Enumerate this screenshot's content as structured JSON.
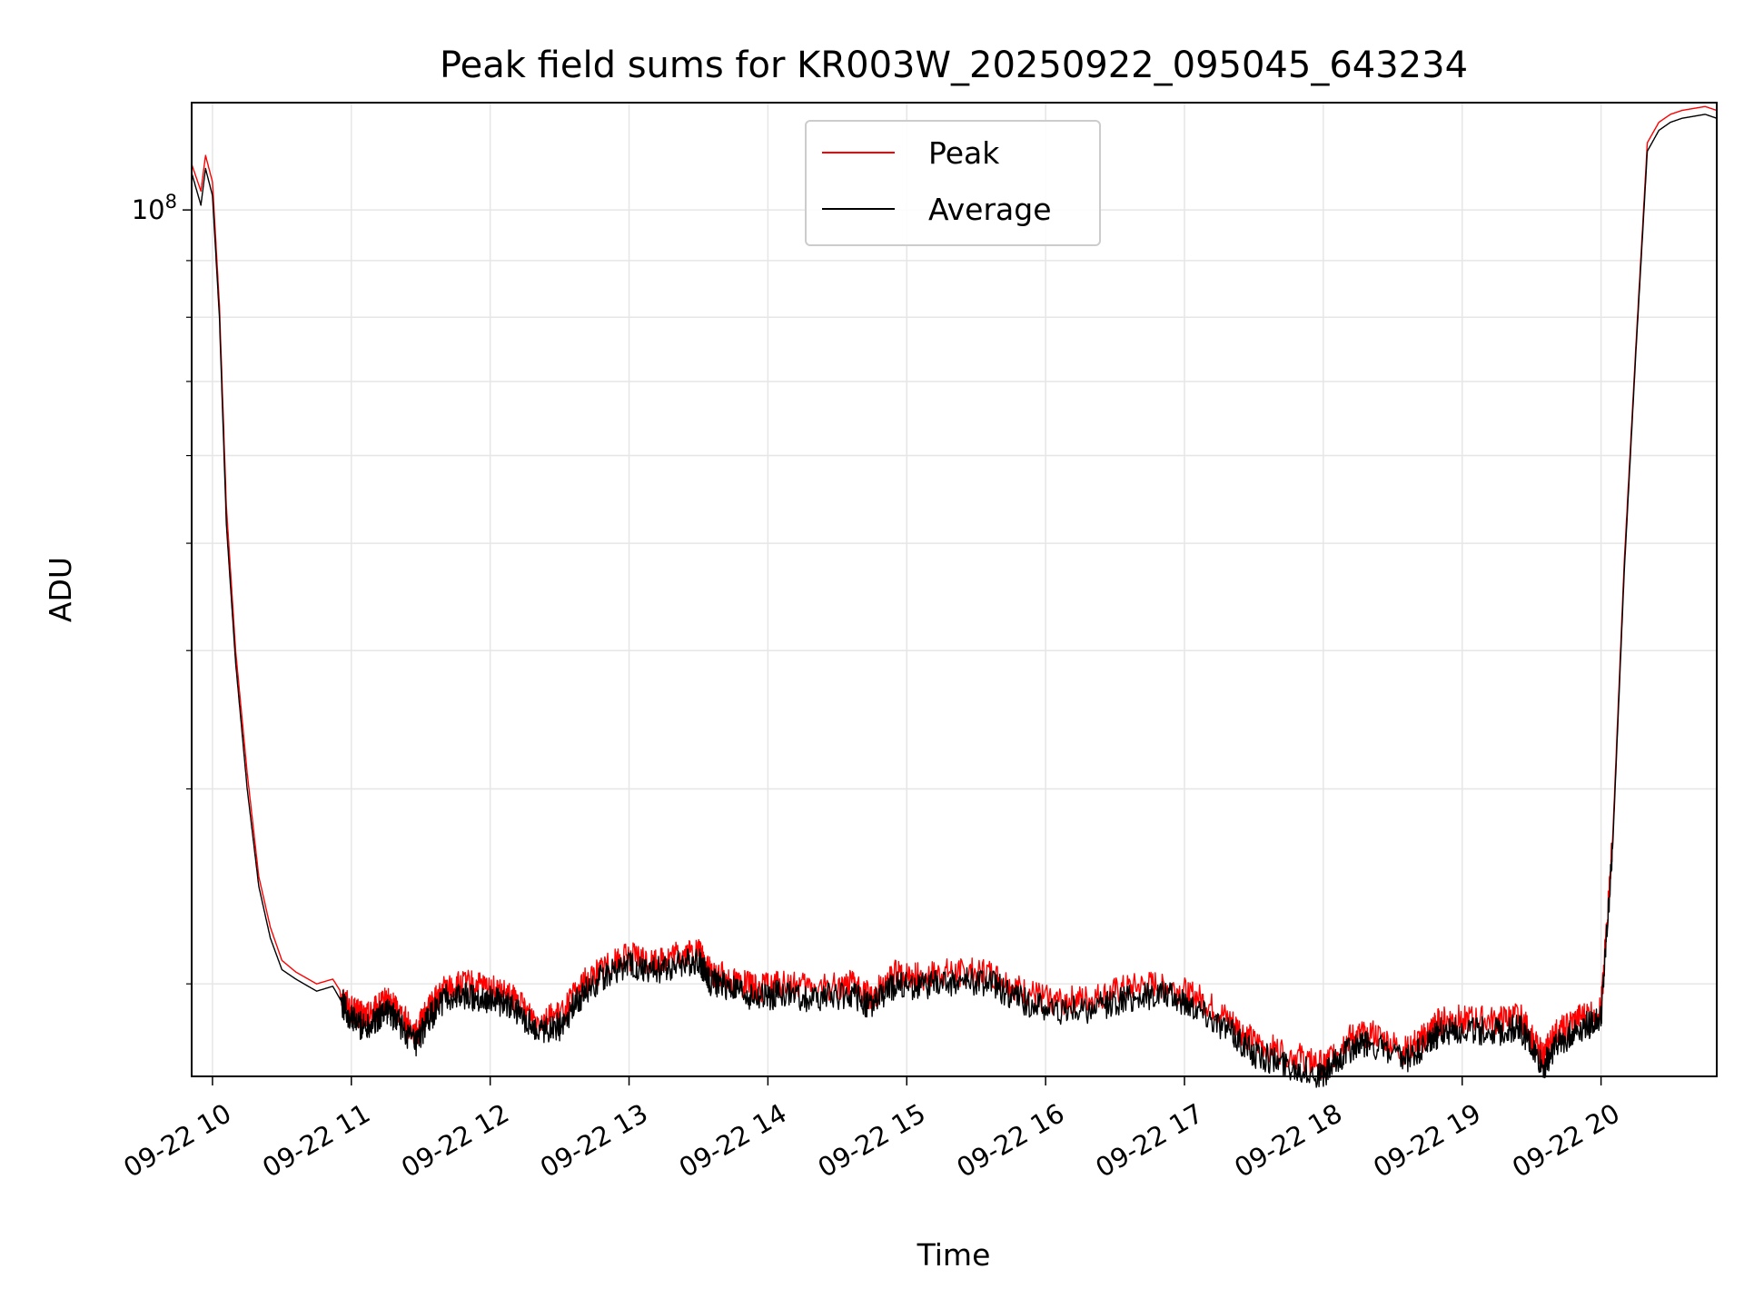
{
  "chart_data": {
    "type": "line",
    "title": "Peak field sums for KR003W_20250922_095045_643234",
    "xlabel": "Time",
    "ylabel": "ADU",
    "yscale": "log",
    "ylim": [
      16500000,
      125000000
    ],
    "xlim": [
      "2025-09-22 09:51",
      "2025-09-22 20:50"
    ],
    "grid": true,
    "legend_position": "top-center",
    "x_ticks": [
      "09-22 10",
      "09-22 11",
      "09-22 12",
      "09-22 13",
      "09-22 14",
      "09-22 15",
      "09-22 16",
      "09-22 17",
      "09-22 18",
      "09-22 19",
      "09-22 20"
    ],
    "y_ticks": [
      {
        "value": 100000000,
        "base": "10",
        "exp": "8"
      }
    ],
    "y_minor_ticks": [
      20000000,
      30000000,
      40000000,
      50000000,
      60000000,
      70000000,
      80000000,
      90000000
    ],
    "x_times": [
      "2025-09-22 09:51",
      "2025-09-22 09:55",
      "2025-09-22 09:57",
      "2025-09-22 10:00",
      "2025-09-22 10:03",
      "2025-09-22 10:06",
      "2025-09-22 10:10",
      "2025-09-22 10:15",
      "2025-09-22 10:20",
      "2025-09-22 10:25",
      "2025-09-22 10:30",
      "2025-09-22 10:36",
      "2025-09-22 10:45",
      "2025-09-22 10:52",
      "2025-09-22 11:00",
      "2025-09-22 11:05",
      "2025-09-22 11:10",
      "2025-09-22 11:15",
      "2025-09-22 11:20",
      "2025-09-22 11:28",
      "2025-09-22 11:32",
      "2025-09-22 11:40",
      "2025-09-22 11:50",
      "2025-09-22 12:00",
      "2025-09-22 12:10",
      "2025-09-22 12:20",
      "2025-09-22 12:30",
      "2025-09-22 12:40",
      "2025-09-22 12:50",
      "2025-09-22 13:00",
      "2025-09-22 13:10",
      "2025-09-22 13:20",
      "2025-09-22 13:30",
      "2025-09-22 13:35",
      "2025-09-22 13:45",
      "2025-09-22 13:55",
      "2025-09-22 14:05",
      "2025-09-22 14:20",
      "2025-09-22 14:35",
      "2025-09-22 14:45",
      "2025-09-22 14:55",
      "2025-09-22 15:05",
      "2025-09-22 15:20",
      "2025-09-22 15:35",
      "2025-09-22 15:50",
      "2025-09-22 16:05",
      "2025-09-22 16:20",
      "2025-09-22 16:35",
      "2025-09-22 16:50",
      "2025-09-22 17:05",
      "2025-09-22 17:20",
      "2025-09-22 17:30",
      "2025-09-22 17:45",
      "2025-09-22 18:00",
      "2025-09-22 18:10",
      "2025-09-22 18:20",
      "2025-09-22 18:35",
      "2025-09-22 18:45",
      "2025-09-22 18:50",
      "2025-09-22 19:00",
      "2025-09-22 19:15",
      "2025-09-22 19:25",
      "2025-09-22 19:35",
      "2025-09-22 19:40",
      "2025-09-22 19:50",
      "2025-09-22 20:00",
      "2025-09-22 20:05",
      "2025-09-22 20:10",
      "2025-09-22 20:15",
      "2025-09-22 20:20",
      "2025-09-22 20:25",
      "2025-09-22 20:30",
      "2025-09-22 20:35",
      "2025-09-22 20:40",
      "2025-09-22 20:45",
      "2025-09-22 20:50"
    ],
    "series": [
      {
        "name": "Peak",
        "color": "#ff0000",
        "values": [
          110000000,
          104000000,
          112000000,
          106000000,
          82000000,
          54000000,
          40000000,
          31000000,
          25000000,
          22500000,
          21000000,
          20500000,
          20000000,
          20200000,
          19000000,
          18700000,
          18900000,
          19300000,
          19000000,
          18000000,
          18800000,
          19800000,
          20000000,
          19800000,
          19400000,
          18600000,
          18700000,
          20000000,
          20800000,
          21200000,
          20900000,
          21200000,
          21400000,
          20500000,
          20200000,
          19800000,
          20000000,
          19800000,
          20000000,
          19500000,
          20400000,
          20300000,
          20500000,
          20500000,
          19700000,
          19300000,
          19400000,
          19800000,
          20000000,
          19500000,
          18500000,
          17700000,
          17300000,
          16900000,
          17800000,
          18100000,
          17400000,
          18000000,
          18500000,
          18600000,
          18500000,
          18700000,
          17200000,
          18000000,
          18600000,
          19000000,
          27000000,
          48000000,
          75000000,
          115000000,
          120000000,
          122000000,
          123000000,
          123500000,
          124000000,
          123000000
        ]
      },
      {
        "name": "Average",
        "color": "#000000",
        "values": [
          108000000,
          101000000,
          109000000,
          103000000,
          80000000,
          52000000,
          39000000,
          30000000,
          24500000,
          22000000,
          20600000,
          20200000,
          19700000,
          19900000,
          18600000,
          18300000,
          18500000,
          19000000,
          18500000,
          17600000,
          18400000,
          19400000,
          19500000,
          19400000,
          19000000,
          18200000,
          18300000,
          19600000,
          20400000,
          20800000,
          20500000,
          20800000,
          21000000,
          20100000,
          19800000,
          19400000,
          19600000,
          19400000,
          19600000,
          19100000,
          20000000,
          19900000,
          20100000,
          20100000,
          19300000,
          18900000,
          19000000,
          19400000,
          19600000,
          19100000,
          18100000,
          17300000,
          16900000,
          16500000,
          17400000,
          17700000,
          17000000,
          17600000,
          18100000,
          18200000,
          18100000,
          18300000,
          16800000,
          17600000,
          18200000,
          18600000,
          26500000,
          47000000,
          74000000,
          113000000,
          118000000,
          120000000,
          121000000,
          121500000,
          122000000,
          121000000
        ]
      }
    ]
  }
}
